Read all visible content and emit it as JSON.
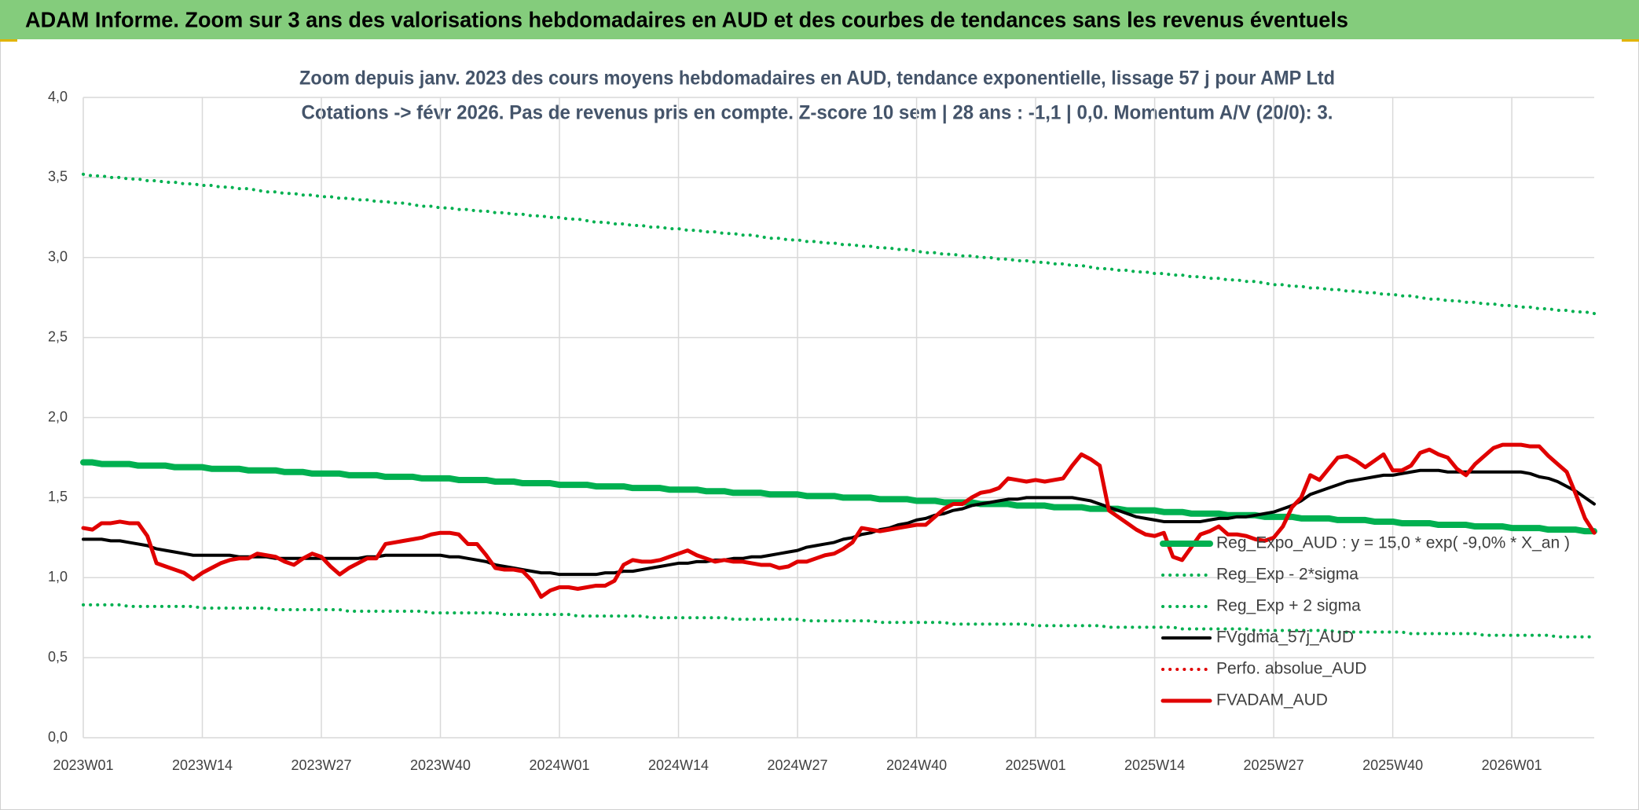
{
  "header": "ADAM Informe. Zoom sur 3 ans des valorisations hebdomadaires en AUD et des courbes de tendances sans les revenus éventuels",
  "chart_data": {
    "type": "line",
    "title": "Zoom depuis janv. 2023 des cours moyens hebdomadaires en AUD, tendance exponentielle, lissage 57 j pour AMP Ltd",
    "subtitle": "Cotations -> févr 2026. Pas de revenus pris en compte. Z-score 10 sem | 28 ans : -1,1 | 0,0. Momentum A/V (20/0): 3.",
    "grid": true,
    "legend": "bottom-right",
    "ylim": [
      0,
      4
    ],
    "yticks": [
      {
        "value": 0,
        "label": "0,0"
      },
      {
        "value": 0.5,
        "label": "0,5"
      },
      {
        "value": 1,
        "label": "1,0"
      },
      {
        "value": 1.5,
        "label": "1,5"
      },
      {
        "value": 2,
        "label": "2,0"
      },
      {
        "value": 2.5,
        "label": "2,5"
      },
      {
        "value": 3,
        "label": "3,0"
      },
      {
        "value": 3.5,
        "label": "3,5"
      },
      {
        "value": 4,
        "label": "4,0"
      }
    ],
    "categories": [
      "2023W01",
      null,
      null,
      null,
      null,
      null,
      null,
      null,
      null,
      null,
      null,
      null,
      null,
      "2023W14",
      null,
      null,
      null,
      null,
      null,
      null,
      null,
      null,
      null,
      null,
      null,
      null,
      "2023W27",
      null,
      null,
      null,
      null,
      null,
      null,
      null,
      null,
      null,
      null,
      null,
      null,
      "2023W40",
      null,
      null,
      null,
      null,
      null,
      null,
      null,
      null,
      null,
      null,
      null,
      null,
      "2024W01",
      null,
      null,
      null,
      null,
      null,
      null,
      null,
      null,
      null,
      null,
      null,
      null,
      "2024W14",
      null,
      null,
      null,
      null,
      null,
      null,
      null,
      null,
      null,
      null,
      null,
      null,
      "2024W27",
      null,
      null,
      null,
      null,
      null,
      null,
      null,
      null,
      null,
      null,
      null,
      null,
      "2024W40",
      null,
      null,
      null,
      null,
      null,
      null,
      null,
      null,
      null,
      null,
      null,
      null,
      "2025W01",
      null,
      null,
      null,
      null,
      null,
      null,
      null,
      null,
      null,
      null,
      null,
      null,
      "2025W14",
      null,
      null,
      null,
      null,
      null,
      null,
      null,
      null,
      null,
      null,
      null,
      null,
      "2025W27",
      null,
      null,
      null,
      null,
      null,
      null,
      null,
      null,
      null,
      null,
      null,
      null,
      "2025W40",
      null,
      null,
      null,
      null,
      null,
      null,
      null,
      null,
      null,
      null,
      null,
      null,
      "2026W01",
      null,
      null,
      null,
      null,
      null,
      null,
      null,
      null,
      null
    ],
    "series": [
      {
        "name": "Reg_Expo_AUD : y = 15,0 * exp( -9,0% * X_an )",
        "color": "#00b050",
        "dash": "solid",
        "values": [
          1.72,
          1.72,
          1.71,
          1.71,
          1.71,
          1.71,
          1.7,
          1.7,
          1.7,
          1.7,
          1.69,
          1.69,
          1.69,
          1.69,
          1.68,
          1.68,
          1.68,
          1.68,
          1.67,
          1.67,
          1.67,
          1.67,
          1.66,
          1.66,
          1.66,
          1.65,
          1.65,
          1.65,
          1.65,
          1.64,
          1.64,
          1.64,
          1.64,
          1.63,
          1.63,
          1.63,
          1.63,
          1.62,
          1.62,
          1.62,
          1.62,
          1.61,
          1.61,
          1.61,
          1.61,
          1.6,
          1.6,
          1.6,
          1.59,
          1.59,
          1.59,
          1.59,
          1.58,
          1.58,
          1.58,
          1.58,
          1.57,
          1.57,
          1.57,
          1.57,
          1.56,
          1.56,
          1.56,
          1.56,
          1.55,
          1.55,
          1.55,
          1.55,
          1.54,
          1.54,
          1.54,
          1.53,
          1.53,
          1.53,
          1.53,
          1.52,
          1.52,
          1.52,
          1.52,
          1.51,
          1.51,
          1.51,
          1.51,
          1.5,
          1.5,
          1.5,
          1.5,
          1.49,
          1.49,
          1.49,
          1.49,
          1.48,
          1.48,
          1.48,
          1.47,
          1.47,
          1.47,
          1.47,
          1.46,
          1.46,
          1.46,
          1.46,
          1.45,
          1.45,
          1.45,
          1.45,
          1.44,
          1.44,
          1.44,
          1.44,
          1.43,
          1.43,
          1.43,
          1.43,
          1.42,
          1.42,
          1.42,
          1.42,
          1.41,
          1.41,
          1.41,
          1.4,
          1.4,
          1.4,
          1.4,
          1.39,
          1.39,
          1.39,
          1.39,
          1.38,
          1.38,
          1.38,
          1.38,
          1.37,
          1.37,
          1.37,
          1.37,
          1.36,
          1.36,
          1.36,
          1.36,
          1.35,
          1.35,
          1.35,
          1.34,
          1.34,
          1.34,
          1.34,
          1.33,
          1.33,
          1.33,
          1.33,
          1.32,
          1.32,
          1.32,
          1.32,
          1.31,
          1.31,
          1.31,
          1.31,
          1.3,
          1.3,
          1.3,
          1.3,
          1.29,
          1.29
        ]
      },
      {
        "name": "Reg_Exp - 2*sigma",
        "color": "#00b050",
        "dash": "dotted",
        "values": [
          0.83,
          0.83,
          0.83,
          0.83,
          0.83,
          0.82,
          0.82,
          0.82,
          0.82,
          0.82,
          0.82,
          0.82,
          0.82,
          0.81,
          0.81,
          0.81,
          0.81,
          0.81,
          0.81,
          0.81,
          0.81,
          0.8,
          0.8,
          0.8,
          0.8,
          0.8,
          0.8,
          0.8,
          0.8,
          0.79,
          0.79,
          0.79,
          0.79,
          0.79,
          0.79,
          0.79,
          0.79,
          0.79,
          0.78,
          0.78,
          0.78,
          0.78,
          0.78,
          0.78,
          0.78,
          0.78,
          0.77,
          0.77,
          0.77,
          0.77,
          0.77,
          0.77,
          0.77,
          0.77,
          0.76,
          0.76,
          0.76,
          0.76,
          0.76,
          0.76,
          0.76,
          0.76,
          0.75,
          0.75,
          0.75,
          0.75,
          0.75,
          0.75,
          0.75,
          0.75,
          0.75,
          0.74,
          0.74,
          0.74,
          0.74,
          0.74,
          0.74,
          0.74,
          0.74,
          0.73,
          0.73,
          0.73,
          0.73,
          0.73,
          0.73,
          0.73,
          0.73,
          0.72,
          0.72,
          0.72,
          0.72,
          0.72,
          0.72,
          0.72,
          0.72,
          0.71,
          0.71,
          0.71,
          0.71,
          0.71,
          0.71,
          0.71,
          0.71,
          0.71,
          0.7,
          0.7,
          0.7,
          0.7,
          0.7,
          0.7,
          0.7,
          0.7,
          0.69,
          0.69,
          0.69,
          0.69,
          0.69,
          0.69,
          0.69,
          0.69,
          0.68,
          0.68,
          0.68,
          0.68,
          0.68,
          0.68,
          0.68,
          0.68,
          0.67,
          0.67,
          0.67,
          0.67,
          0.67,
          0.67,
          0.67,
          0.67,
          0.67,
          0.66,
          0.66,
          0.66,
          0.66,
          0.66,
          0.66,
          0.66,
          0.66,
          0.65,
          0.65,
          0.65,
          0.65,
          0.65,
          0.65,
          0.65,
          0.65,
          0.64,
          0.64,
          0.64,
          0.64,
          0.64,
          0.64,
          0.64,
          0.64,
          0.63,
          0.63,
          0.63,
          0.63,
          0.63
        ]
      },
      {
        "name": "Reg_Exp + 2 sigma",
        "color": "#00b050",
        "dash": "dotted",
        "values": [
          3.52,
          3.51,
          3.51,
          3.5,
          3.5,
          3.49,
          3.49,
          3.48,
          3.48,
          3.47,
          3.47,
          3.46,
          3.46,
          3.45,
          3.45,
          3.44,
          3.44,
          3.43,
          3.43,
          3.42,
          3.41,
          3.41,
          3.4,
          3.4,
          3.39,
          3.39,
          3.38,
          3.38,
          3.37,
          3.37,
          3.36,
          3.36,
          3.35,
          3.35,
          3.34,
          3.34,
          3.33,
          3.32,
          3.32,
          3.31,
          3.31,
          3.3,
          3.3,
          3.29,
          3.29,
          3.28,
          3.28,
          3.27,
          3.27,
          3.26,
          3.26,
          3.25,
          3.25,
          3.24,
          3.24,
          3.23,
          3.22,
          3.22,
          3.21,
          3.21,
          3.2,
          3.2,
          3.19,
          3.19,
          3.18,
          3.18,
          3.17,
          3.17,
          3.16,
          3.16,
          3.15,
          3.15,
          3.14,
          3.14,
          3.13,
          3.12,
          3.12,
          3.11,
          3.11,
          3.1,
          3.1,
          3.09,
          3.09,
          3.08,
          3.08,
          3.07,
          3.07,
          3.06,
          3.06,
          3.05,
          3.05,
          3.04,
          3.03,
          3.03,
          3.02,
          3.02,
          3.01,
          3.01,
          3.0,
          3.0,
          2.99,
          2.99,
          2.98,
          2.98,
          2.97,
          2.97,
          2.96,
          2.96,
          2.95,
          2.95,
          2.94,
          2.93,
          2.93,
          2.92,
          2.92,
          2.91,
          2.91,
          2.9,
          2.9,
          2.89,
          2.89,
          2.88,
          2.88,
          2.87,
          2.87,
          2.86,
          2.86,
          2.85,
          2.85,
          2.84,
          2.83,
          2.83,
          2.82,
          2.82,
          2.81,
          2.81,
          2.8,
          2.8,
          2.79,
          2.79,
          2.78,
          2.78,
          2.77,
          2.77,
          2.76,
          2.76,
          2.75,
          2.74,
          2.74,
          2.73,
          2.73,
          2.72,
          2.72,
          2.71,
          2.71,
          2.7,
          2.7,
          2.69,
          2.69,
          2.68,
          2.68,
          2.67,
          2.67,
          2.66,
          2.66,
          2.65
        ]
      },
      {
        "name": "FVgdma_57j_AUD",
        "color": "#000000",
        "dash": "solid",
        "values": [
          1.24,
          1.24,
          1.24,
          1.23,
          1.23,
          1.22,
          1.21,
          1.2,
          1.18,
          1.17,
          1.16,
          1.15,
          1.14,
          1.14,
          1.14,
          1.14,
          1.14,
          1.13,
          1.13,
          1.13,
          1.13,
          1.12,
          1.12,
          1.12,
          1.12,
          1.12,
          1.12,
          1.12,
          1.12,
          1.12,
          1.12,
          1.13,
          1.13,
          1.14,
          1.14,
          1.14,
          1.14,
          1.14,
          1.14,
          1.14,
          1.13,
          1.13,
          1.12,
          1.11,
          1.1,
          1.08,
          1.07,
          1.06,
          1.05,
          1.04,
          1.03,
          1.03,
          1.02,
          1.02,
          1.02,
          1.02,
          1.02,
          1.03,
          1.03,
          1.04,
          1.04,
          1.05,
          1.06,
          1.07,
          1.08,
          1.09,
          1.09,
          1.1,
          1.1,
          1.11,
          1.11,
          1.12,
          1.12,
          1.13,
          1.13,
          1.14,
          1.15,
          1.16,
          1.17,
          1.19,
          1.2,
          1.21,
          1.22,
          1.24,
          1.25,
          1.27,
          1.28,
          1.3,
          1.31,
          1.33,
          1.34,
          1.36,
          1.37,
          1.39,
          1.4,
          1.42,
          1.43,
          1.45,
          1.46,
          1.47,
          1.48,
          1.49,
          1.49,
          1.5,
          1.5,
          1.5,
          1.5,
          1.5,
          1.5,
          1.49,
          1.48,
          1.46,
          1.44,
          1.42,
          1.4,
          1.38,
          1.37,
          1.36,
          1.35,
          1.35,
          1.35,
          1.35,
          1.35,
          1.36,
          1.37,
          1.37,
          1.38,
          1.38,
          1.39,
          1.4,
          1.41,
          1.43,
          1.45,
          1.48,
          1.52,
          1.54,
          1.56,
          1.58,
          1.6,
          1.61,
          1.62,
          1.63,
          1.64,
          1.64,
          1.65,
          1.66,
          1.67,
          1.67,
          1.67,
          1.66,
          1.66,
          1.66,
          1.66,
          1.66,
          1.66,
          1.66,
          1.66,
          1.66,
          1.65,
          1.63,
          1.62,
          1.6,
          1.57,
          1.54,
          1.5,
          1.46
        ]
      },
      {
        "name": "Perfo. absolue_AUD",
        "color": "#e00000",
        "dash": "dotted"
      },
      {
        "name": "FVADAM_AUD",
        "color": "#e00000",
        "dash": "solid",
        "values": [
          1.31,
          1.3,
          1.34,
          1.34,
          1.35,
          1.34,
          1.34,
          1.26,
          1.09,
          1.07,
          1.05,
          1.03,
          0.99,
          1.03,
          1.06,
          1.09,
          1.11,
          1.12,
          1.12,
          1.15,
          1.14,
          1.13,
          1.1,
          1.08,
          1.12,
          1.15,
          1.13,
          1.07,
          1.02,
          1.06,
          1.09,
          1.12,
          1.12,
          1.21,
          1.22,
          1.23,
          1.24,
          1.25,
          1.27,
          1.28,
          1.28,
          1.27,
          1.21,
          1.21,
          1.14,
          1.06,
          1.05,
          1.05,
          1.04,
          0.98,
          0.88,
          0.92,
          0.94,
          0.94,
          0.93,
          0.94,
          0.95,
          0.95,
          0.98,
          1.08,
          1.11,
          1.1,
          1.1,
          1.11,
          1.13,
          1.15,
          1.17,
          1.14,
          1.12,
          1.1,
          1.11,
          1.1,
          1.1,
          1.09,
          1.08,
          1.08,
          1.06,
          1.07,
          1.1,
          1.1,
          1.12,
          1.14,
          1.15,
          1.18,
          1.22,
          1.31,
          1.3,
          1.29,
          1.3,
          1.31,
          1.32,
          1.33,
          1.33,
          1.38,
          1.43,
          1.46,
          1.46,
          1.5,
          1.53,
          1.54,
          1.56,
          1.62,
          1.61,
          1.6,
          1.61,
          1.6,
          1.61,
          1.62,
          1.7,
          1.77,
          1.74,
          1.7,
          1.42,
          1.38,
          1.34,
          1.3,
          1.27,
          1.26,
          1.28,
          1.13,
          1.11,
          1.19,
          1.27,
          1.29,
          1.32,
          1.27,
          1.27,
          1.26,
          1.24,
          1.23,
          1.25,
          1.32,
          1.44,
          1.5,
          1.64,
          1.61,
          1.68,
          1.75,
          1.76,
          1.73,
          1.69,
          1.73,
          1.77,
          1.67,
          1.67,
          1.7,
          1.78,
          1.8,
          1.77,
          1.75,
          1.68,
          1.64,
          1.71,
          1.76,
          1.81,
          1.83,
          1.83,
          1.83,
          1.82,
          1.82,
          1.76,
          1.71,
          1.66,
          1.52,
          1.37,
          1.28
        ]
      }
    ]
  }
}
